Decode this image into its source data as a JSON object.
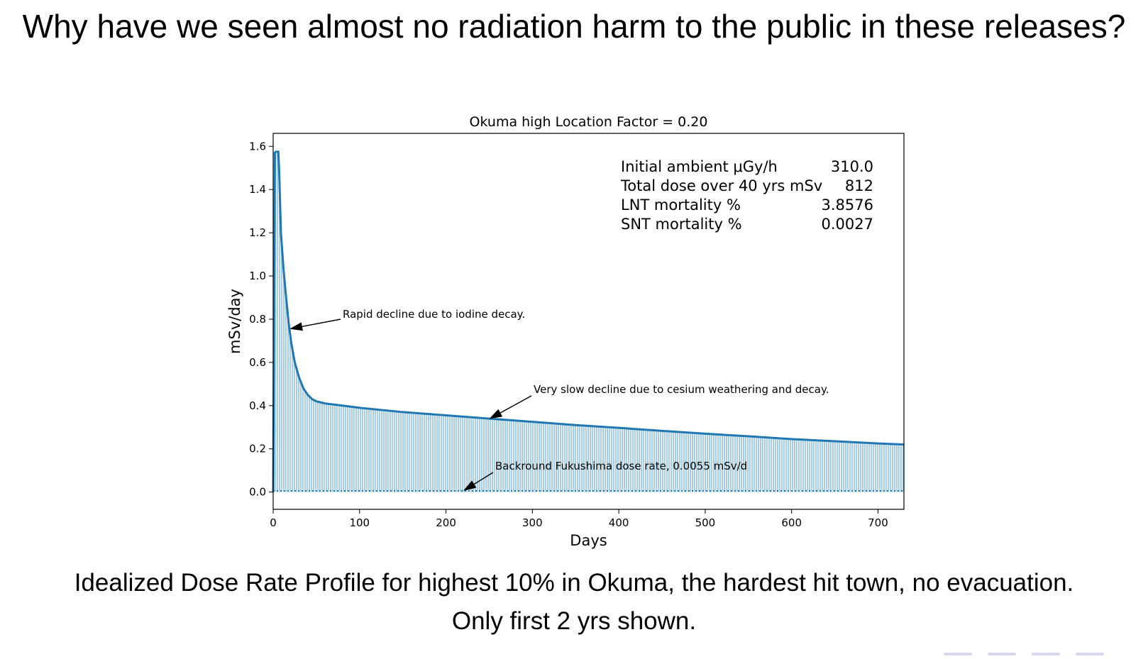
{
  "slide": {
    "title": "Why have we seen almost no radiation harm to the public in these releases?",
    "caption_line1": "Idealized Dose Rate Profile for highest 10% in Okuma, the hardest hit town, no evacuation.",
    "caption_line2": "Only first 2 yrs shown."
  },
  "chart_data": {
    "type": "area",
    "title": "Okuma high Location Factor = 0.20",
    "xlabel": "Days",
    "ylabel": "mSv/day",
    "xlim": [
      0,
      730
    ],
    "ylim": [
      -0.08,
      1.66
    ],
    "xticks": [
      0,
      100,
      200,
      300,
      400,
      500,
      600,
      700
    ],
    "yticks": [
      "0.0",
      "0.2",
      "0.4",
      "0.6",
      "0.8",
      "1.0",
      "1.2",
      "1.4",
      "1.6"
    ],
    "grid": false,
    "line_color": "#1f77b4",
    "fill_color": "#a6cfe6",
    "series": [
      {
        "x": [
          0,
          2,
          3,
          6,
          7,
          9,
          12,
          15,
          18,
          21,
          25,
          30,
          35,
          40,
          45,
          50,
          60,
          70,
          80,
          100,
          150,
          200,
          250,
          300,
          350,
          400,
          450,
          500,
          550,
          600,
          650,
          700,
          730
        ],
        "values": [
          0.0,
          1.57,
          1.575,
          1.575,
          1.48,
          1.2,
          1.03,
          0.9,
          0.78,
          0.69,
          0.6,
          0.53,
          0.48,
          0.45,
          0.43,
          0.42,
          0.41,
          0.405,
          0.4,
          0.39,
          0.37,
          0.355,
          0.34,
          0.325,
          0.31,
          0.297,
          0.283,
          0.27,
          0.258,
          0.245,
          0.235,
          0.225,
          0.22
        ]
      }
    ],
    "background_line": 0.0055,
    "stats": [
      {
        "label": "Initial ambient μGy/h",
        "value": "310.0"
      },
      {
        "label": "Total dose over 40 yrs mSv",
        "value": "812"
      },
      {
        "label": "LNT mortality %",
        "value": "3.8576"
      },
      {
        "label": "SNT mortality %",
        "value": "0.0027"
      }
    ],
    "annotations": [
      {
        "text": "Rapid decline due to iodine decay.",
        "point": [
          19,
          0.755
        ]
      },
      {
        "text": "Very slow decline due to cesium weathering and decay.",
        "point": [
          250,
          0.338
        ]
      },
      {
        "text": "Backround Fukushima dose rate, 0.0055 mSv/d",
        "point": [
          220,
          0.0055
        ]
      }
    ]
  }
}
